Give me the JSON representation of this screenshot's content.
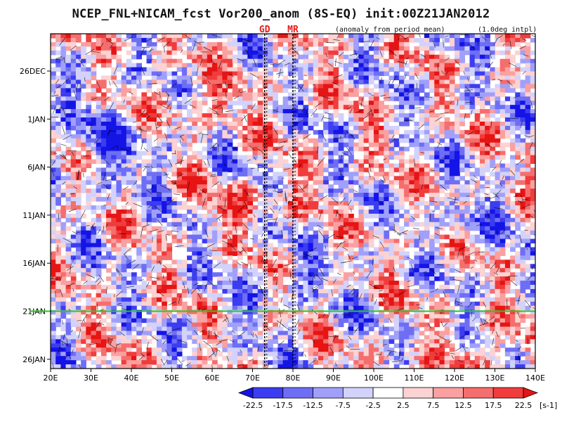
{
  "chart_data": {
    "type": "heatmap",
    "title": "NCEP_FNL+NICAM_fcst Vor200_anom (8S-EQ) init:00Z21JAN2012",
    "subtitle_left": "(anomaly from period mean)",
    "subtitle_right": "(1.0deg intpl)",
    "x_axis": {
      "ticks": [
        "20E",
        "30E",
        "40E",
        "50E",
        "60E",
        "70E",
        "80E",
        "90E",
        "100E",
        "110E",
        "120E",
        "130E",
        "140E"
      ],
      "range": [
        20,
        140
      ]
    },
    "y_axis": {
      "ticks": [
        "26DEC",
        "1JAN",
        "6JAN",
        "11JAN",
        "16JAN",
        "21JAN",
        "26JAN"
      ],
      "range_days_note": "time increases downward"
    },
    "colorbar": {
      "labels": [
        "-22.5",
        "-17.5",
        "-12.5",
        "-7.5",
        "-2.5",
        "2.5",
        "7.5",
        "12.5",
        "17.5",
        "22.5"
      ],
      "unit": "[s-1]",
      "colors": [
        "#1414e6",
        "#3c3cf0",
        "#6e6ef5",
        "#a0a0fa",
        "#d2d2fc",
        "#ffffff",
        "#fcd2d2",
        "#faa0a0",
        "#f56e6e",
        "#f03c3c",
        "#e61414"
      ]
    },
    "markers": [
      {
        "label": "GD",
        "lon": 73,
        "color": "#e02020"
      },
      {
        "label": "MR",
        "lon": 80,
        "color": "#e02020"
      }
    ],
    "init_line": {
      "date": "21JAN",
      "color": "#22cc22"
    }
  }
}
